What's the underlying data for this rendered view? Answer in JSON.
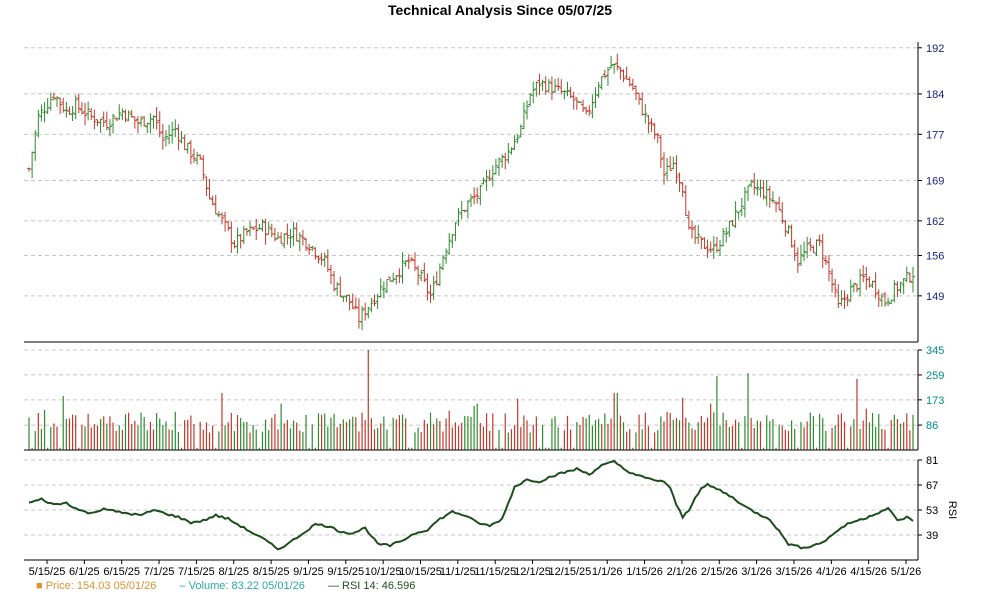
{
  "chart_data": {
    "type": "line",
    "title": "Technical Analysis Since 05/07/25",
    "colors": {
      "up": "#2e8b2e",
      "down": "#c0392b",
      "rsi": "#1e4e1e",
      "grid": "#c8c8c8",
      "price_axis_text": "#1a237e",
      "volume_axis_text": "#008b8b",
      "rsi_axis_text": "#000000"
    },
    "x_ticks": [
      "5/15/25",
      "6/1/25",
      "6/15/25",
      "7/1/25",
      "7/15/25",
      "8/1/25",
      "8/15/25",
      "9/1/25",
      "9/15/25",
      "10/1/25",
      "10/15/25",
      "11/1/25",
      "11/15/25",
      "12/1/25",
      "12/15/25",
      "1/1/26",
      "1/15/26",
      "2/1/26",
      "2/15/26",
      "3/1/26",
      "3/15/26",
      "4/1/26",
      "4/15/26",
      "5/1/26"
    ],
    "panels": {
      "price": {
        "ylim": [
          141,
          193
        ],
        "yticks": [
          149,
          156,
          162,
          169,
          177,
          184,
          192
        ],
        "key_points": [
          [
            0,
            171
          ],
          [
            3,
            180
          ],
          [
            8,
            184
          ],
          [
            12,
            181
          ],
          [
            15,
            182
          ],
          [
            20,
            180
          ],
          [
            25,
            179
          ],
          [
            30,
            181
          ],
          [
            35,
            179
          ],
          [
            40,
            180
          ],
          [
            43,
            176
          ],
          [
            47,
            178
          ],
          [
            50,
            175
          ],
          [
            55,
            172
          ],
          [
            58,
            166
          ],
          [
            62,
            162
          ],
          [
            66,
            158
          ],
          [
            70,
            160
          ],
          [
            75,
            161
          ],
          [
            80,
            159
          ],
          [
            85,
            160
          ],
          [
            90,
            158
          ],
          [
            95,
            155
          ],
          [
            98,
            151
          ],
          [
            103,
            148
          ],
          [
            106,
            145
          ],
          [
            110,
            148
          ],
          [
            114,
            151
          ],
          [
            118,
            153
          ],
          [
            122,
            155
          ],
          [
            126,
            152
          ],
          [
            129,
            149
          ],
          [
            131,
            152
          ],
          [
            133,
            156
          ],
          [
            137,
            162
          ],
          [
            141,
            165
          ],
          [
            145,
            167
          ],
          [
            149,
            171
          ],
          [
            154,
            174
          ],
          [
            158,
            178
          ],
          [
            161,
            184
          ],
          [
            164,
            186
          ],
          [
            168,
            185
          ],
          [
            172,
            184
          ],
          [
            175,
            183
          ],
          [
            179,
            180
          ],
          [
            183,
            186
          ],
          [
            187,
            189
          ],
          [
            190,
            188
          ],
          [
            194,
            185
          ],
          [
            198,
            180
          ],
          [
            202,
            176
          ],
          [
            204,
            170
          ],
          [
            207,
            172
          ],
          [
            210,
            168
          ],
          [
            212,
            160
          ],
          [
            216,
            158
          ],
          [
            220,
            157
          ],
          [
            224,
            160
          ],
          [
            228,
            164
          ],
          [
            232,
            168
          ],
          [
            236,
            167
          ],
          [
            240,
            165
          ],
          [
            244,
            160
          ],
          [
            247,
            155
          ],
          [
            250,
            157
          ],
          [
            254,
            158
          ],
          [
            257,
            153
          ],
          [
            260,
            147
          ],
          [
            264,
            150
          ],
          [
            268,
            152
          ],
          [
            271,
            151
          ],
          [
            275,
            148
          ],
          [
            278,
            150
          ],
          [
            282,
            152
          ],
          [
            284,
            153
          ]
        ]
      },
      "volume": {
        "ylim": [
          0,
          345
        ],
        "yticks": [
          86,
          173,
          259,
          345
        ],
        "spikes": {
          "109": 345,
          "221": 255,
          "231": 265,
          "266": 245
        }
      },
      "rsi": {
        "label": "RSI",
        "ylim": [
          25,
          81
        ],
        "yticks": [
          39,
          53,
          67,
          81
        ],
        "key_points": [
          [
            0,
            57
          ],
          [
            4,
            59
          ],
          [
            8,
            56
          ],
          [
            12,
            57
          ],
          [
            16,
            53
          ],
          [
            20,
            51
          ],
          [
            24,
            54
          ],
          [
            28,
            52
          ],
          [
            32,
            51
          ],
          [
            36,
            50
          ],
          [
            40,
            53
          ],
          [
            44,
            51
          ],
          [
            48,
            49
          ],
          [
            52,
            46
          ],
          [
            56,
            47
          ],
          [
            60,
            50
          ],
          [
            64,
            48
          ],
          [
            68,
            44
          ],
          [
            72,
            40
          ],
          [
            76,
            36
          ],
          [
            80,
            31
          ],
          [
            84,
            35
          ],
          [
            88,
            40
          ],
          [
            92,
            45
          ],
          [
            96,
            44
          ],
          [
            100,
            41
          ],
          [
            104,
            40
          ],
          [
            108,
            43
          ],
          [
            112,
            34
          ],
          [
            116,
            33
          ],
          [
            120,
            36
          ],
          [
            124,
            40
          ],
          [
            128,
            42
          ],
          [
            132,
            48
          ],
          [
            136,
            52
          ],
          [
            140,
            50
          ],
          [
            144,
            46
          ],
          [
            148,
            44
          ],
          [
            152,
            48
          ],
          [
            156,
            66
          ],
          [
            160,
            70
          ],
          [
            164,
            69
          ],
          [
            168,
            72
          ],
          [
            172,
            74
          ],
          [
            176,
            76
          ],
          [
            180,
            73
          ],
          [
            184,
            78
          ],
          [
            188,
            80
          ],
          [
            192,
            75
          ],
          [
            196,
            72
          ],
          [
            200,
            70
          ],
          [
            204,
            69
          ],
          [
            206,
            65
          ],
          [
            208,
            56
          ],
          [
            210,
            49
          ],
          [
            212,
            53
          ],
          [
            214,
            60
          ],
          [
            216,
            65
          ],
          [
            218,
            67
          ],
          [
            222,
            64
          ],
          [
            226,
            60
          ],
          [
            230,
            55
          ],
          [
            234,
            51
          ],
          [
            238,
            48
          ],
          [
            241,
            41
          ],
          [
            244,
            34
          ],
          [
            248,
            32
          ],
          [
            252,
            33
          ],
          [
            256,
            36
          ],
          [
            260,
            42
          ],
          [
            264,
            46
          ],
          [
            268,
            48
          ],
          [
            272,
            51
          ],
          [
            276,
            54
          ],
          [
            279,
            47
          ],
          [
            282,
            49
          ],
          [
            284,
            46.596
          ]
        ]
      }
    }
  },
  "legend": {
    "price_label": "Price: 154.03  05/01/26",
    "volume_label": "Volume: 83.22  05/01/26",
    "rsi_label": "RSI 14: 46.596"
  }
}
